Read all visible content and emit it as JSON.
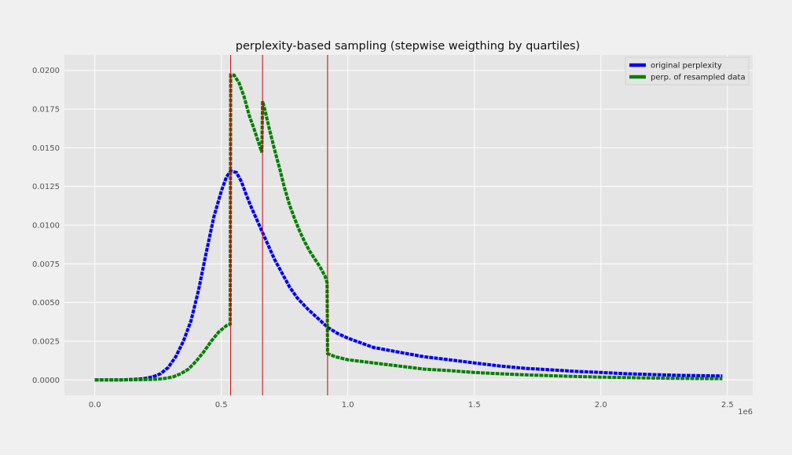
{
  "chart_data": {
    "type": "line",
    "title": "perplexity-based sampling (stepwise weigthing by quartiles)",
    "xlabel": "",
    "ylabel": "",
    "x_offset_label": "1e6",
    "xlim": [
      -0.12,
      2.6
    ],
    "ylim": [
      -0.001,
      0.021
    ],
    "x_ticks": [
      0.0,
      0.5,
      1.0,
      1.5,
      2.0,
      2.5
    ],
    "x_tick_labels": [
      "0.0",
      "0.5",
      "1.0",
      "1.5",
      "2.0",
      "2.5"
    ],
    "y_ticks": [
      0.0,
      0.0025,
      0.005,
      0.0075,
      0.01,
      0.0125,
      0.015,
      0.0175,
      0.02
    ],
    "y_tick_labels": [
      "0.0000",
      "0.0025",
      "0.0050",
      "0.0075",
      "0.0100",
      "0.0125",
      "0.0150",
      "0.0175",
      "0.0200"
    ],
    "grid": true,
    "legend_position": "top-right",
    "vlines": {
      "x": [
        0.537,
        0.663,
        0.92
      ],
      "color": "#cc0000"
    },
    "series": [
      {
        "name": "original perplexity",
        "color": "#0000ee",
        "points": [
          [
            0.0,
            0.0
          ],
          [
            0.1,
            0.0
          ],
          [
            0.17,
            5e-05
          ],
          [
            0.2,
            0.0001
          ],
          [
            0.23,
            0.0002
          ],
          [
            0.26,
            0.0004
          ],
          [
            0.29,
            0.0008
          ],
          [
            0.32,
            0.0015
          ],
          [
            0.35,
            0.0025
          ],
          [
            0.38,
            0.0038
          ],
          [
            0.41,
            0.0058
          ],
          [
            0.44,
            0.0082
          ],
          [
            0.47,
            0.0105
          ],
          [
            0.5,
            0.0122
          ],
          [
            0.52,
            0.0131
          ],
          [
            0.537,
            0.0135
          ],
          [
            0.56,
            0.0134
          ],
          [
            0.58,
            0.0128
          ],
          [
            0.6,
            0.0119
          ],
          [
            0.62,
            0.0111
          ],
          [
            0.65,
            0.01
          ],
          [
            0.68,
            0.0089
          ],
          [
            0.71,
            0.0078
          ],
          [
            0.74,
            0.0069
          ],
          [
            0.77,
            0.006
          ],
          [
            0.8,
            0.0053
          ],
          [
            0.84,
            0.0046
          ],
          [
            0.88,
            0.004
          ],
          [
            0.92,
            0.0034
          ],
          [
            0.96,
            0.003
          ],
          [
            1.0,
            0.0027
          ],
          [
            1.05,
            0.0024
          ],
          [
            1.1,
            0.0021
          ],
          [
            1.2,
            0.0018
          ],
          [
            1.3,
            0.0015
          ],
          [
            1.4,
            0.0013
          ],
          [
            1.5,
            0.0011
          ],
          [
            1.6,
            0.0009
          ],
          [
            1.7,
            0.00075
          ],
          [
            1.8,
            0.00065
          ],
          [
            1.9,
            0.00055
          ],
          [
            2.0,
            0.00048
          ],
          [
            2.1,
            0.0004
          ],
          [
            2.2,
            0.00035
          ],
          [
            2.3,
            0.0003
          ],
          [
            2.48,
            0.00025
          ]
        ]
      },
      {
        "name": "perp. of resampled data",
        "color": "#008000",
        "points": [
          [
            0.0,
            0.0
          ],
          [
            0.1,
            0.0
          ],
          [
            0.2,
            2e-05
          ],
          [
            0.25,
            5e-05
          ],
          [
            0.28,
            0.0001
          ],
          [
            0.31,
            0.0002
          ],
          [
            0.34,
            0.0004
          ],
          [
            0.37,
            0.0007
          ],
          [
            0.4,
            0.0012
          ],
          [
            0.43,
            0.0018
          ],
          [
            0.46,
            0.0025
          ],
          [
            0.49,
            0.0031
          ],
          [
            0.52,
            0.0035
          ],
          [
            0.535,
            0.0036
          ],
          [
            0.537,
            0.0197
          ],
          [
            0.55,
            0.0197
          ],
          [
            0.57,
            0.0192
          ],
          [
            0.59,
            0.0183
          ],
          [
            0.61,
            0.0171
          ],
          [
            0.63,
            0.0162
          ],
          [
            0.65,
            0.0152
          ],
          [
            0.66,
            0.0147
          ],
          [
            0.663,
            0.018
          ],
          [
            0.67,
            0.0176
          ],
          [
            0.69,
            0.0162
          ],
          [
            0.71,
            0.0149
          ],
          [
            0.73,
            0.0137
          ],
          [
            0.75,
            0.0124
          ],
          [
            0.77,
            0.0113
          ],
          [
            0.79,
            0.0104
          ],
          [
            0.81,
            0.0096
          ],
          [
            0.83,
            0.0089
          ],
          [
            0.85,
            0.0083
          ],
          [
            0.87,
            0.0078
          ],
          [
            0.89,
            0.0073
          ],
          [
            0.91,
            0.0067
          ],
          [
            0.918,
            0.0063
          ],
          [
            0.92,
            0.0017
          ],
          [
            0.95,
            0.0015
          ],
          [
            1.0,
            0.0013
          ],
          [
            1.1,
            0.0011
          ],
          [
            1.2,
            0.0009
          ],
          [
            1.3,
            0.0007
          ],
          [
            1.4,
            0.0006
          ],
          [
            1.5,
            0.00048
          ],
          [
            1.6,
            0.0004
          ],
          [
            1.7,
            0.00033
          ],
          [
            1.8,
            0.00027
          ],
          [
            1.9,
            0.00022
          ],
          [
            2.0,
            0.00018
          ],
          [
            2.1,
            0.00015
          ],
          [
            2.2,
            0.00012
          ],
          [
            2.3,
            0.0001
          ],
          [
            2.48,
            8e-05
          ]
        ]
      }
    ]
  }
}
